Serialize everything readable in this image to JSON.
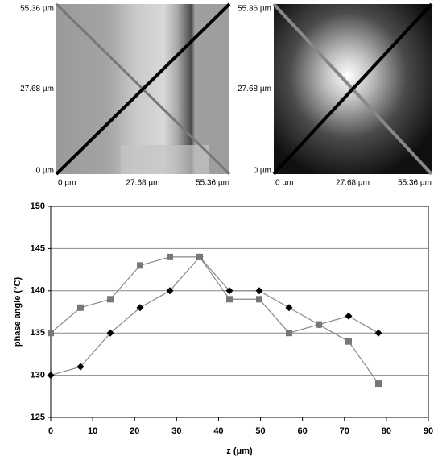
{
  "images": [
    {
      "y_labels": [
        "55.36 µm",
        "27.68 µm",
        "0 µm"
      ],
      "x_labels": [
        "0 µm",
        "27.68 µm",
        "55.36 µm"
      ]
    },
    {
      "y_labels": [
        "55.36 µm",
        "27.68 µm",
        "0 µm"
      ],
      "x_labels": [
        "0 µm",
        "27.68 µm",
        "55.36 µm"
      ]
    }
  ],
  "chart_data": {
    "type": "line",
    "ylabel": "phase angle (°C)",
    "xlabel": "z (μm)",
    "series": [
      {
        "color": "#000000",
        "marker": "diamond",
        "x": [
          0,
          7.1,
          14.2,
          21.3,
          28.4,
          35.5,
          42.6,
          49.7,
          56.8,
          63.9,
          71,
          78.1
        ],
        "values": [
          130,
          131,
          135,
          138,
          140,
          144,
          140,
          140,
          138,
          136,
          137,
          135
        ]
      },
      {
        "color": "#777777",
        "marker": "square",
        "x": [
          0,
          7.1,
          14.2,
          21.3,
          28.4,
          35.5,
          42.6,
          49.7,
          56.8,
          63.9,
          71,
          78.1
        ],
        "values": [
          135,
          138,
          139,
          143,
          144,
          144,
          139,
          139,
          135,
          136,
          134,
          129
        ]
      }
    ],
    "xlim": [
      0,
      90
    ],
    "xticks": [
      0,
      10,
      20,
      30,
      40,
      50,
      60,
      70,
      80,
      90
    ],
    "ylim": [
      125,
      150
    ],
    "yticks": [
      125,
      130,
      135,
      140,
      145,
      150
    ],
    "grid": true
  }
}
